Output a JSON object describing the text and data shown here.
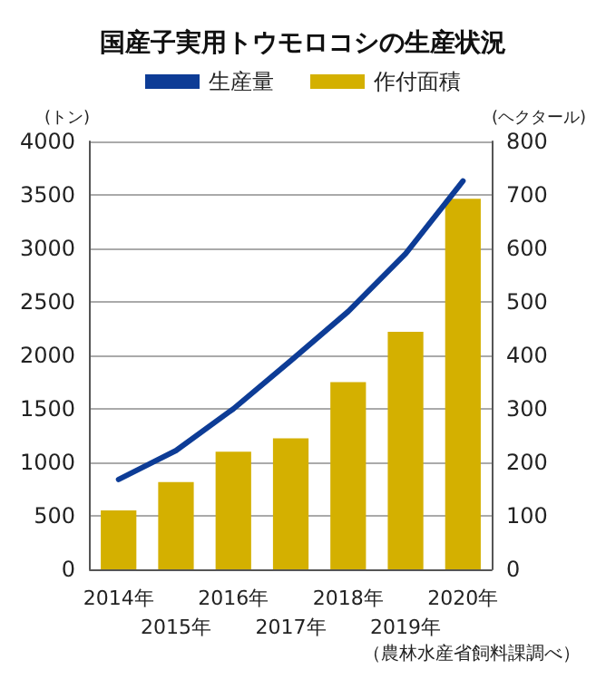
{
  "chart_data": {
    "type": "bar",
    "title": "国産子実用トウモロコシの生産状況",
    "ylabel": "(トン)",
    "y2label": "(ヘクタール)",
    "categories": [
      "2014年",
      "2015年",
      "2016年",
      "2017年",
      "2018年",
      "2019年",
      "2020年"
    ],
    "series": [
      {
        "name": "生産量",
        "type": "line",
        "color": "#0d3c96",
        "axis": "y",
        "values": [
          840,
          1110,
          1500,
          1950,
          2410,
          2950,
          3630
        ]
      },
      {
        "name": "作付面積",
        "color": "#d4b000",
        "axis": "y2",
        "values": [
          110,
          163,
          220,
          245,
          350,
          444,
          693
        ]
      }
    ],
    "ylim": [
      0,
      4000
    ],
    "yticks": [
      0,
      500,
      1000,
      1500,
      2000,
      2500,
      3000,
      3500,
      4000
    ],
    "y2lim": [
      0,
      800
    ],
    "y2ticks": [
      0,
      100,
      200,
      300,
      400,
      500,
      600,
      700,
      800
    ],
    "grid": "y",
    "legend": "top",
    "marker": "none",
    "line_style": "solid",
    "annotations": [
      "（農林水産省飼料課調べ）"
    ]
  }
}
